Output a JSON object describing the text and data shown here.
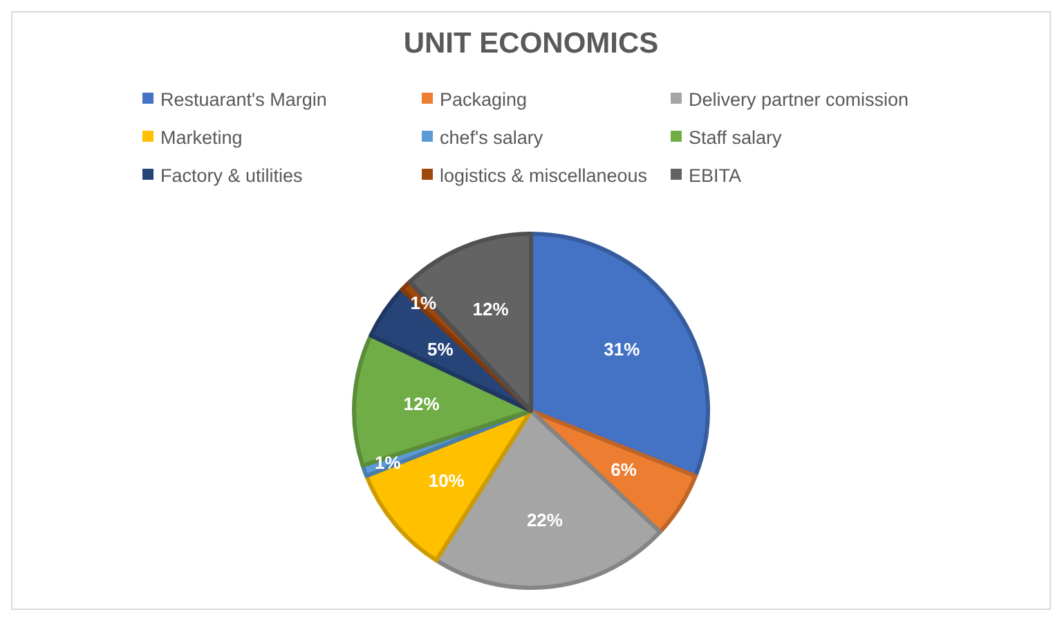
{
  "chart_data": {
    "type": "pie",
    "title": "UNIT ECONOMICS",
    "categories": [
      "Restuarant's Margin",
      "Packaging",
      "Delivery partner comission",
      "Marketing",
      "chef's salary",
      "Staff salary",
      "Factory & utilities",
      "logistics & miscellaneous",
      "EBITA"
    ],
    "values": [
      31,
      6,
      22,
      10,
      1,
      12,
      5,
      1,
      12
    ],
    "value_labels": [
      "31%",
      "6%",
      "22%",
      "10%",
      "1%",
      "12%",
      "5%",
      "1%",
      "12%"
    ],
    "colors": [
      "#4472c4",
      "#ed7d31",
      "#a5a5a5",
      "#ffc000",
      "#5b9bd5",
      "#70ad47",
      "#264478",
      "#9e480e",
      "#636363"
    ],
    "legend": "top"
  }
}
